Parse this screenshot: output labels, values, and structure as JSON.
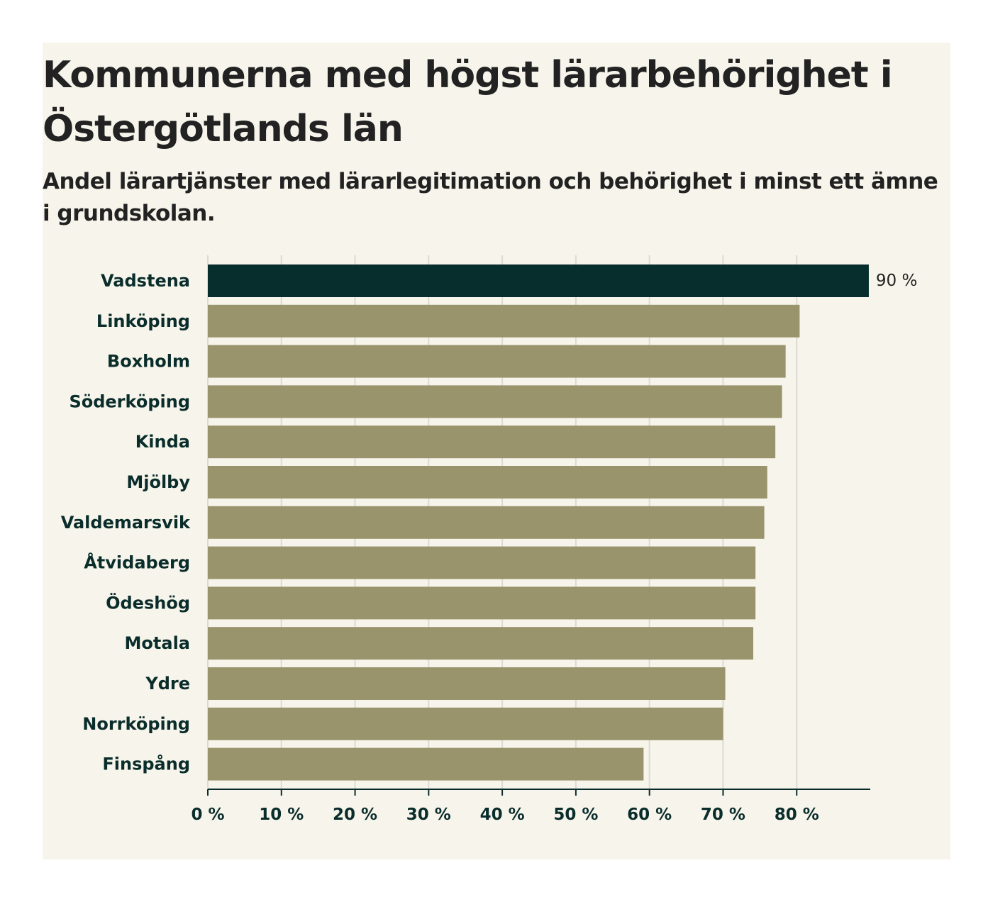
{
  "title": "Kommunerna med högst lärarbehörighet i Östergötlands län",
  "subtitle": "Andel lärartjänster med lärarlegitimation och behörighet i minst ett ämne i grundskolan.",
  "colors": {
    "highlight": "#072d2c",
    "bar": "#99946b",
    "grid": "#dcdad3",
    "axis": "#0a2d2c",
    "background": "#f7f5eb"
  },
  "chart_data": {
    "type": "bar",
    "orientation": "horizontal",
    "title": "Kommunerna med högst lärarbehörighet i Östergötlands län",
    "subtitle": "Andel lärartjänster med lärarlegitimation och behörighet i minst ett ämne i grundskolan.",
    "categories": [
      "Vadstena",
      "Linköping",
      "Boxholm",
      "Söderköping",
      "Kinda",
      "Mjölby",
      "Valdemarsvik",
      "Åtvidaberg",
      "Ödeshög",
      "Motala",
      "Ydre",
      "Norrköping",
      "Finspång"
    ],
    "values": [
      89.8,
      80.4,
      78.5,
      78.0,
      77.1,
      76.0,
      75.6,
      74.4,
      74.4,
      74.1,
      70.3,
      70.0,
      59.2
    ],
    "highlight_index": 0,
    "data_labels": [
      "90 %"
    ],
    "xlim": [
      0,
      90
    ],
    "xticks": [
      0,
      10,
      20,
      30,
      40,
      50,
      60,
      70,
      80
    ],
    "xtick_labels": [
      "0 %",
      "10 %",
      "20 %",
      "30 %",
      "40 %",
      "50 %",
      "60 %",
      "70 %",
      "80 %"
    ],
    "xlabel": "",
    "ylabel": "",
    "grid": true,
    "legend": "none"
  }
}
